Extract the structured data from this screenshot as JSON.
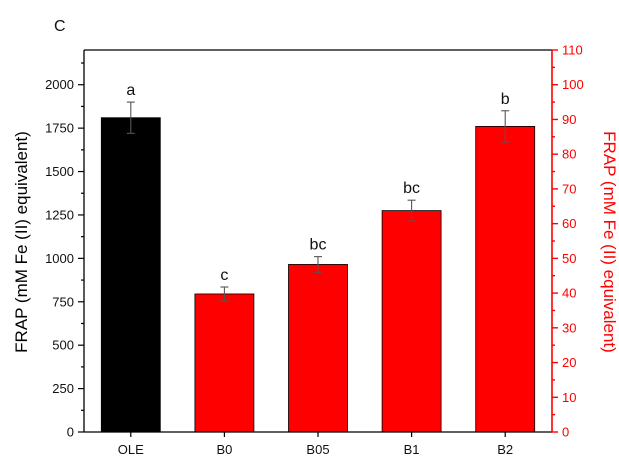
{
  "panel_label": "C",
  "colors": {
    "left_axis": "#000000",
    "right_axis": "#ff0000",
    "error_bar": "#555555"
  },
  "chart_data": {
    "type": "bar",
    "categories": [
      "OLE",
      "B0",
      "B05",
      "B1",
      "B2"
    ],
    "values": [
      1810,
      795,
      965,
      1275,
      1760
    ],
    "errors": [
      90,
      40,
      45,
      60,
      90
    ],
    "bar_colors": [
      "#000000",
      "#ff0000",
      "#ff0000",
      "#ff0000",
      "#ff0000"
    ],
    "annotations": [
      "a",
      "c",
      "bc",
      "bc",
      "b"
    ],
    "ylabel": "FRAP (mM Fe (II) equivalent)",
    "ylabel_right": "FRAP (mM Fe (II) equivalent)",
    "ylim": [
      0,
      2200
    ],
    "ylim_right": [
      0,
      110
    ],
    "yticks": [
      0,
      250,
      500,
      750,
      1000,
      1250,
      1500,
      1750,
      2000
    ],
    "yticks_right": [
      0,
      10,
      20,
      30,
      40,
      50,
      60,
      70,
      80,
      90,
      100,
      110
    ],
    "grid": false,
    "legend": "none"
  }
}
